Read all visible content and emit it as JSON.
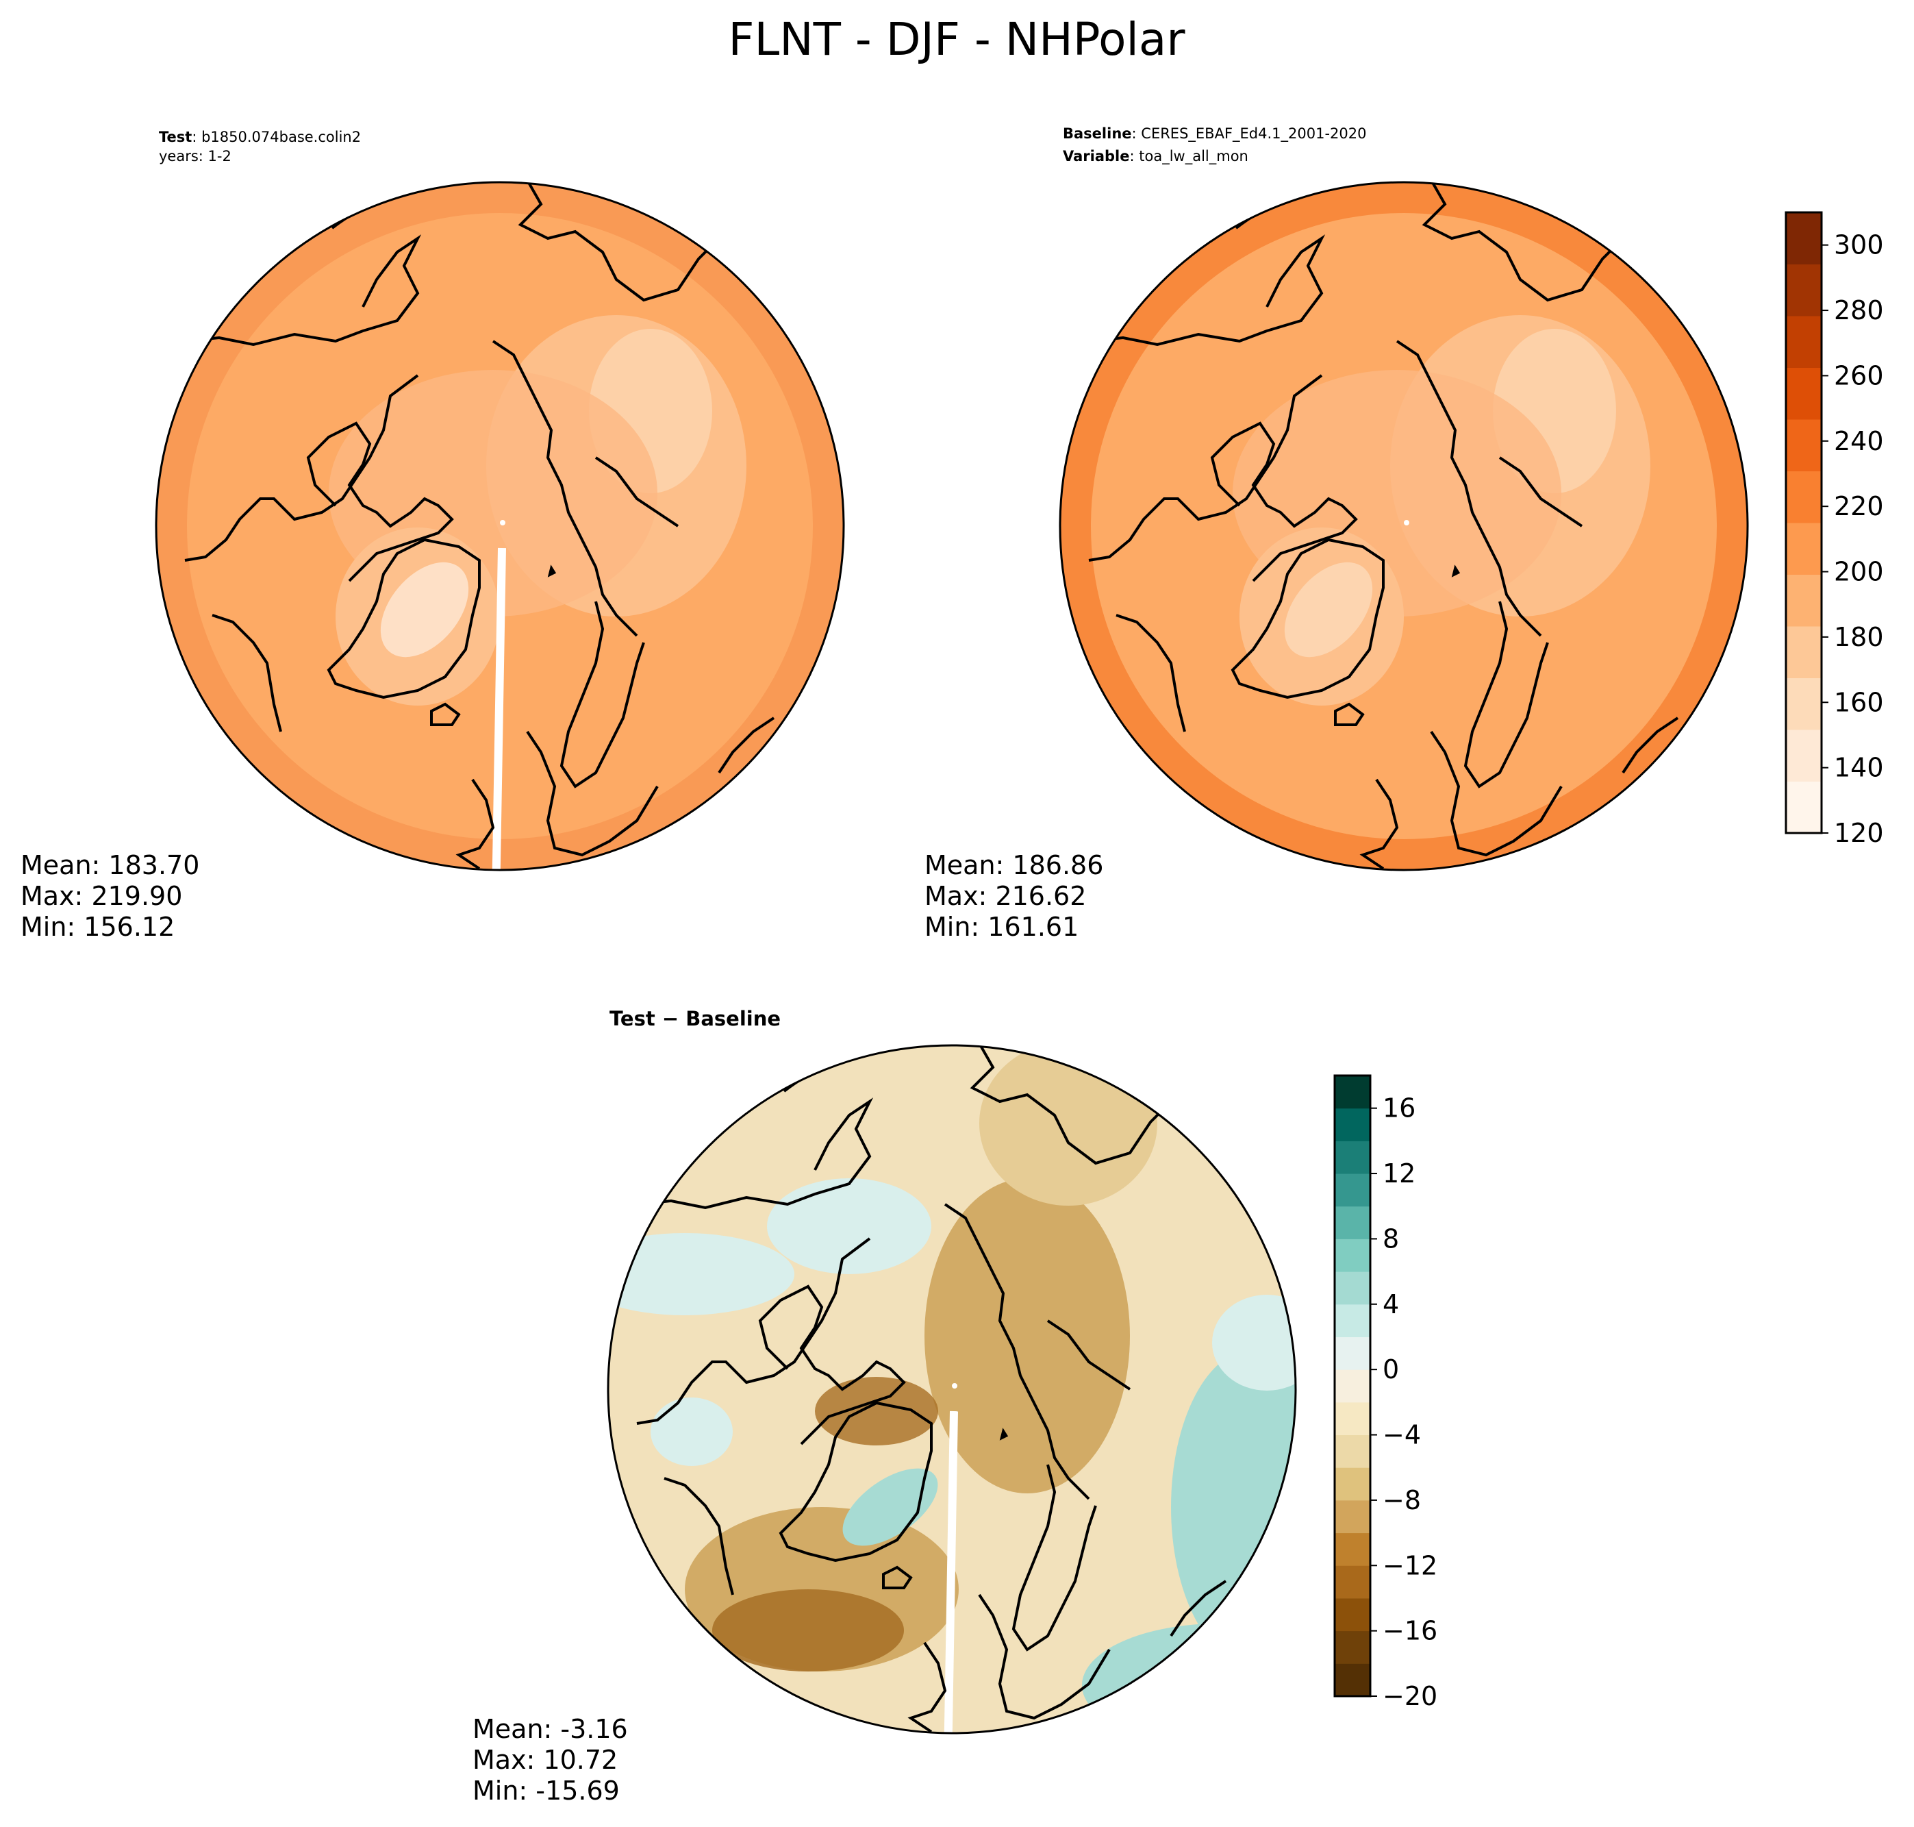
{
  "figure": {
    "title": "FLNT - DJF - NHPolar"
  },
  "panels": {
    "test": {
      "label_bold": "Test",
      "label_value": "b1850.074base.colin2",
      "line2": "years: 1-2",
      "stats": {
        "mean": "Mean: 183.70",
        "max": "Max: 219.90",
        "min": "Min: 156.12"
      }
    },
    "baseline": {
      "label_bold": "Baseline",
      "label_value": "CERES_EBAF_Ed4.1_2001-2020",
      "var_bold": "Variable",
      "var_value": "toa_lw_all_mon",
      "stats": {
        "mean": "Mean: 186.86",
        "max": "Max: 216.62",
        "min": "Min: 161.61"
      }
    },
    "diff": {
      "title_bold": "Test − Baseline",
      "stats": {
        "mean": "Mean: -3.16",
        "max": "Max: 10.72",
        "min": "Min: -15.69"
      }
    }
  },
  "colorbars": {
    "main": {
      "range": [
        120,
        310
      ],
      "ticks": [
        "120",
        "140",
        "160",
        "180",
        "200",
        "220",
        "240",
        "260",
        "280",
        "300"
      ],
      "colors": [
        "#fff5eb",
        "#fee9d6",
        "#fddbb9",
        "#fdc897",
        "#fdb272",
        "#fd9a4f",
        "#f98030",
        "#ef6618",
        "#de4f06",
        "#c24002",
        "#a13403",
        "#7f2704"
      ]
    },
    "diff": {
      "range": [
        -20,
        18
      ],
      "ticks": [
        "−20",
        "−16",
        "−12",
        "−8",
        "−4",
        "0",
        "4",
        "8",
        "12",
        "16"
      ],
      "colors": [
        "#543005",
        "#6f4109",
        "#8c510a",
        "#a9691b",
        "#bf812d",
        "#d2a55c",
        "#dfc27d",
        "#ecd9a8",
        "#f6e8c3",
        "#f7efde",
        "#e7f2f0",
        "#c7eae5",
        "#a4dad2",
        "#80cdc1",
        "#5ab4a9",
        "#35978f",
        "#1b7f77",
        "#01665e",
        "#003c30"
      ]
    }
  },
  "map_colors": {
    "test": {
      "base": "#fdaa65",
      "outer": "#f99a55",
      "inner": "#fdc08c",
      "greenland": "#fee0c6",
      "pole_light": "#fdd1a8"
    },
    "baseline": {
      "base": "#fdaa65",
      "outer": "#f8893c",
      "inner": "#fdc08c",
      "greenland": "#fdd5b0",
      "pole_light": "#fdd1a8"
    },
    "diff": {
      "base": "#f2e1bb",
      "brown": "#d2ab66",
      "darkbrown": "#a76f26",
      "teal": "#a7dbd3",
      "lightteal": "#d9efec"
    }
  }
}
